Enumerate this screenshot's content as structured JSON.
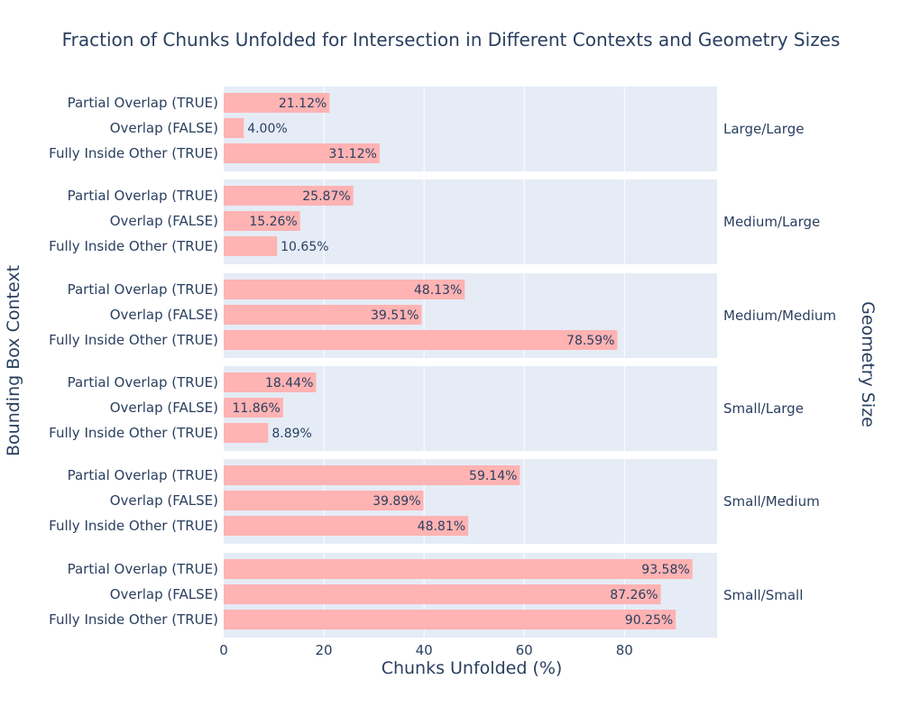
{
  "chart_data": {
    "type": "bar",
    "orientation": "horizontal",
    "title": "Fraction of Chunks Unfolded for Intersection in Different Contexts and Geometry Sizes",
    "xlabel": "Chunks Unfolded (%)",
    "ylabel": "Bounding Box Context",
    "facet_label": "Geometry Size",
    "xlim": [
      0,
      98.5
    ],
    "xticks": [
      0,
      20,
      40,
      60,
      80
    ],
    "categories": [
      "Partial Overlap (TRUE)",
      "Overlap (FALSE)",
      "Fully Inside Other (TRUE)"
    ],
    "grid": true,
    "colors": {
      "bar": "#ffb3b3",
      "panel": "#e5ecf6",
      "grid": "#ffffff",
      "text": "#2a3f5f"
    },
    "facets": [
      {
        "name": "Large/Large",
        "values": [
          21.12,
          4.0,
          31.12
        ],
        "labels": [
          "21.12%",
          "4.00%",
          "31.12%"
        ]
      },
      {
        "name": "Medium/Large",
        "values": [
          25.87,
          15.26,
          10.65
        ],
        "labels": [
          "25.87%",
          "15.26%",
          "10.65%"
        ]
      },
      {
        "name": "Medium/Medium",
        "values": [
          48.13,
          39.51,
          78.59
        ],
        "labels": [
          "48.13%",
          "39.51%",
          "78.59%"
        ]
      },
      {
        "name": "Small/Large",
        "values": [
          18.44,
          11.86,
          8.89
        ],
        "labels": [
          "18.44%",
          "11.86%",
          "8.89%"
        ]
      },
      {
        "name": "Small/Medium",
        "values": [
          59.14,
          39.89,
          48.81
        ],
        "labels": [
          "59.14%",
          "39.89%",
          "48.81%"
        ]
      },
      {
        "name": "Small/Small",
        "values": [
          93.58,
          87.26,
          90.25
        ],
        "labels": [
          "93.58%",
          "87.26%",
          "90.25%"
        ]
      }
    ]
  }
}
